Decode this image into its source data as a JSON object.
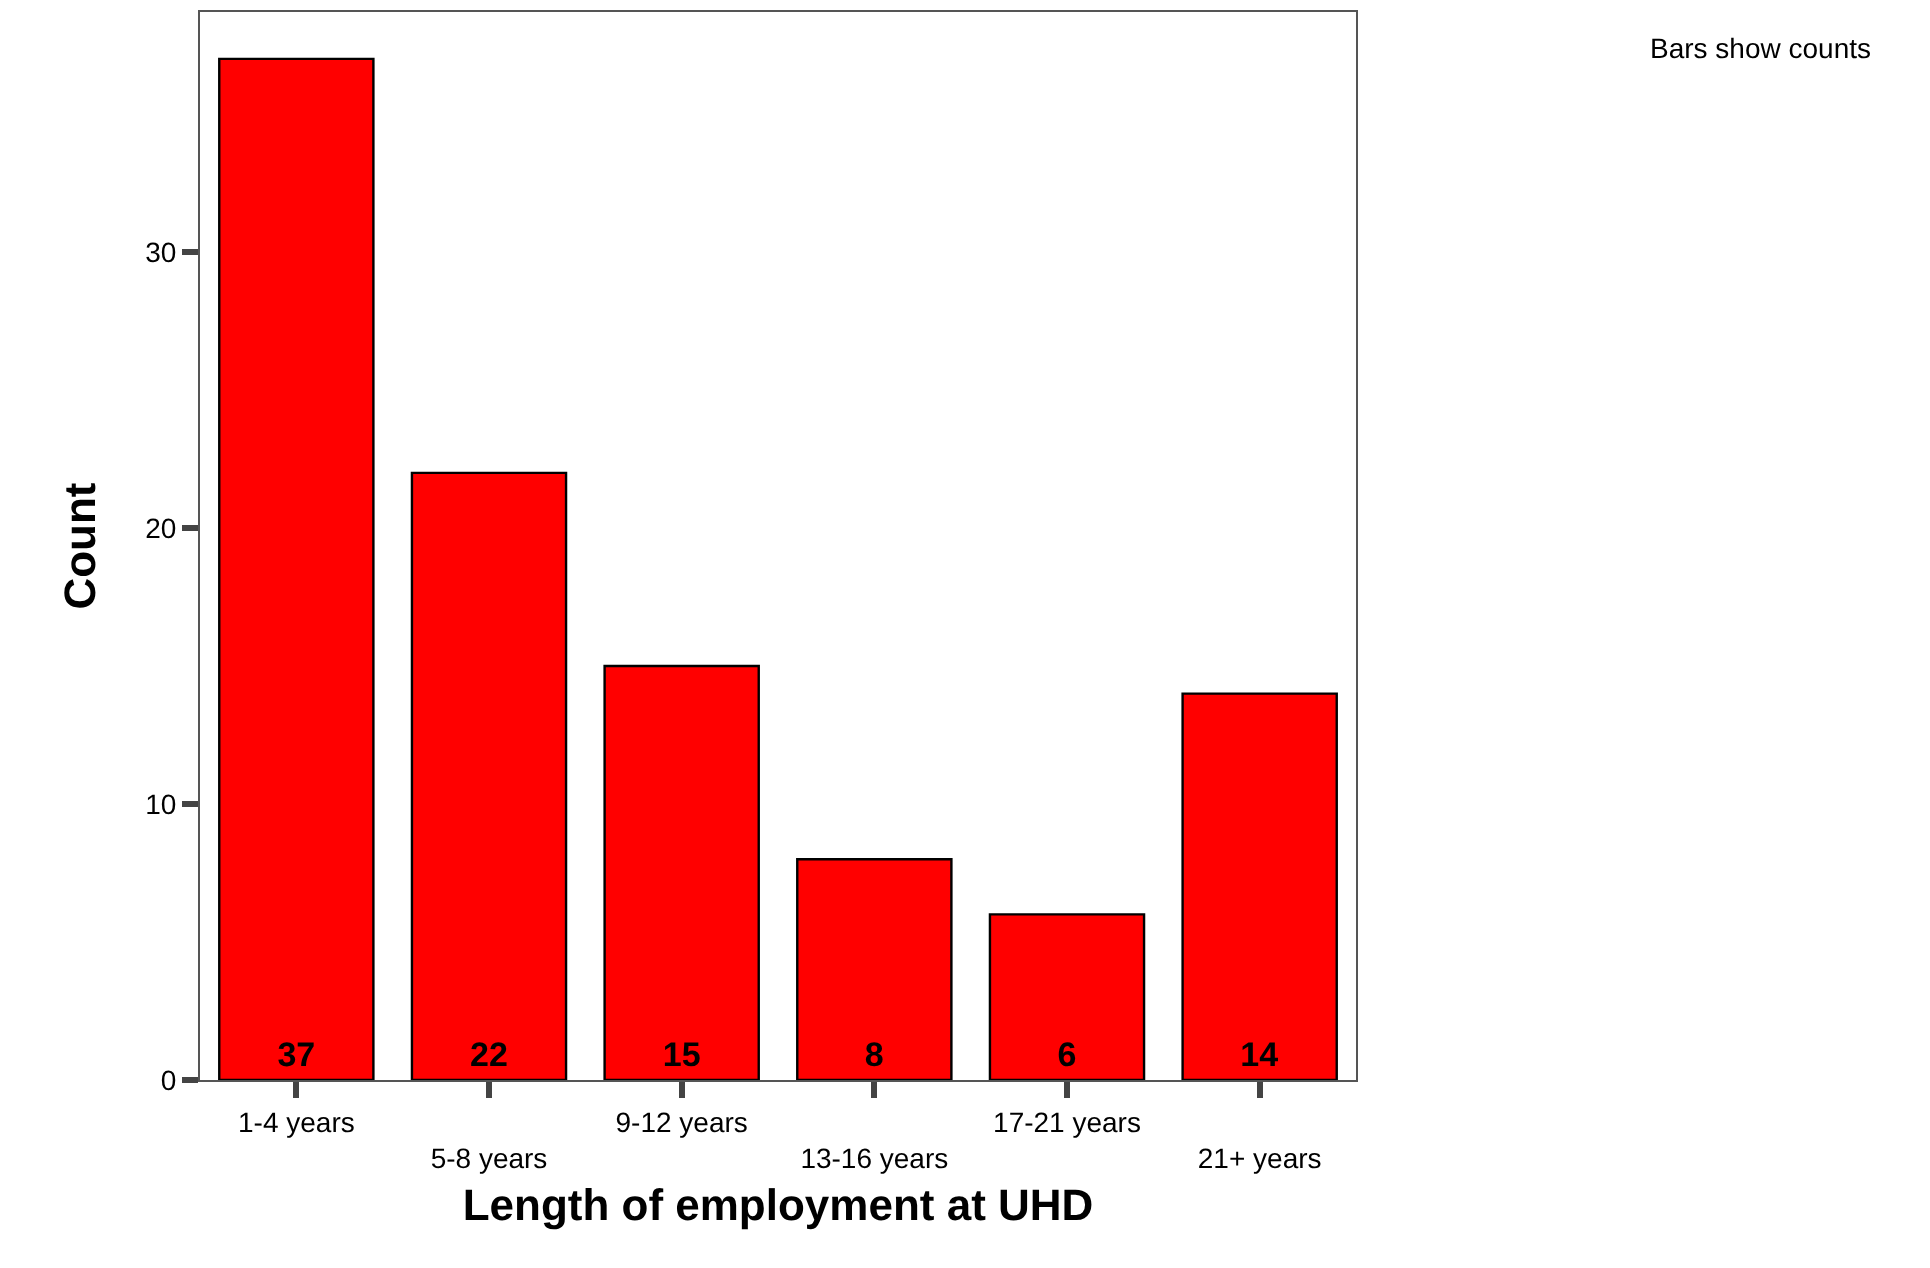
{
  "chart_data": {
    "type": "bar",
    "xlabel": "Length of employment at UHD",
    "ylabel": "Count",
    "categories": [
      "1-4 years",
      "5-8 years",
      "9-12 years",
      "13-16 years",
      "17-21 years",
      "21+ years"
    ],
    "values": [
      37,
      22,
      15,
      8,
      6,
      14
    ],
    "color": "#ff0000",
    "data_labels": true,
    "ylim": [
      0,
      38.7
    ],
    "yticks": [
      0,
      10,
      20,
      30
    ],
    "grid": false,
    "annotations": [
      "Bars show counts"
    ]
  }
}
